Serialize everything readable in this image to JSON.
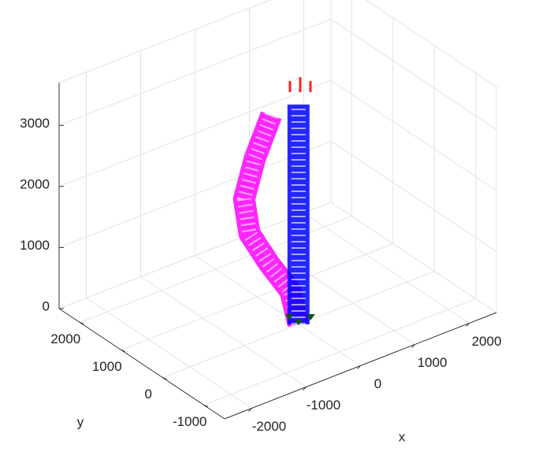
{
  "chart_data": {
    "type": "line3d",
    "xlabel": "x",
    "ylabel": "y",
    "xlim": [
      -2500,
      2500
    ],
    "ylim": [
      -1500,
      2500
    ],
    "zlim": [
      0,
      3700
    ],
    "xticks": [
      -2000,
      -1000,
      0,
      1000,
      2000
    ],
    "yticks": [
      -1000,
      0,
      1000,
      2000
    ],
    "zticks": [
      0,
      1000,
      2000,
      3000
    ],
    "grid": true,
    "series": [
      {
        "color": "#ff00ff",
        "x": [
          0,
          -150,
          -550,
          -900,
          -1000,
          -800,
          -500
        ],
        "y": [
          0,
          0,
          0,
          0,
          0,
          0,
          0
        ],
        "z": [
          0,
          600,
          1200,
          1800,
          2400,
          3000,
          3600
        ]
      },
      {
        "color": "#0000ff",
        "x": [
          0,
          0
        ],
        "y": [
          0,
          0
        ],
        "z": [
          0,
          3600
        ]
      }
    ]
  }
}
